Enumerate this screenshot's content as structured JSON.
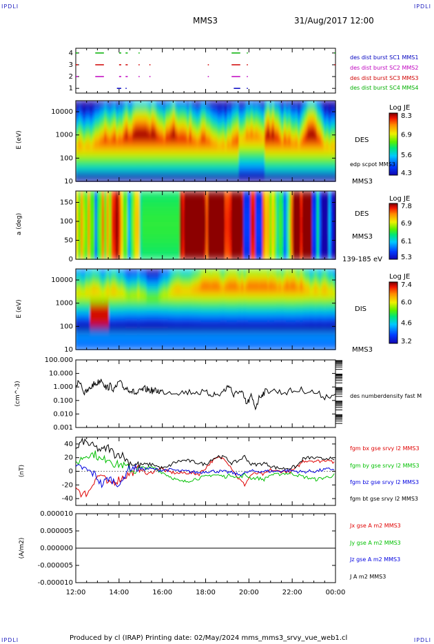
{
  "header": {
    "left_logo": "IPDLI",
    "right_logo": "IPDLI",
    "spacecraft": "MMS3",
    "date": "31/Aug/2017 12:00"
  },
  "footer": {
    "text": "Produced by cl (IRAP)   Printing date: 02/May/2024   mms_mms3_srvy_vue_web1.cl",
    "left_logo": "IPDLI",
    "right_logo": "IPDLI"
  },
  "colors": {
    "mms1": "#0000c0",
    "mms2": "#c000c0",
    "mms3": "#d00000",
    "mms4": "#00b000",
    "bx": "#e00000",
    "by": "#00c000",
    "bz": "#0000e0",
    "bt": "#000000"
  },
  "chart_data": [
    {
      "type": "scatter",
      "name": "burst-availability",
      "ylim": [
        0.6,
        4.4
      ],
      "yticks": [
        "1",
        "2",
        "3",
        "4"
      ],
      "legend": [
        "des dist burst SC1 MMS1",
        "des dist burst SC2 MMS2",
        "des dist burst SC3 MMS3",
        "des dist burst SC4 MMS4"
      ],
      "segments": [
        {
          "sc": 4,
          "hours": [
            [
              12.0,
              12.1
            ],
            [
              12.9,
              13.3
            ],
            [
              14.0,
              14.1
            ],
            [
              14.3,
              14.4
            ],
            [
              14.9,
              14.95
            ],
            [
              19.2,
              19.6
            ],
            [
              19.9,
              19.95
            ],
            [
              23.95,
              24.0
            ]
          ]
        },
        {
          "sc": 3,
          "hours": [
            [
              12.0,
              12.1
            ],
            [
              12.9,
              13.3
            ],
            [
              14.0,
              14.1
            ],
            [
              14.3,
              14.4
            ],
            [
              14.9,
              14.95
            ],
            [
              15.4,
              15.45
            ],
            [
              18.1,
              18.15
            ],
            [
              19.2,
              19.6
            ],
            [
              19.9,
              19.95
            ],
            [
              23.95,
              24.0
            ]
          ]
        },
        {
          "sc": 2,
          "hours": [
            [
              12.0,
              12.1
            ],
            [
              12.9,
              13.3
            ],
            [
              14.0,
              14.1
            ],
            [
              14.3,
              14.4
            ],
            [
              14.9,
              14.95
            ],
            [
              15.4,
              15.45
            ],
            [
              18.1,
              18.15
            ],
            [
              19.2,
              19.6
            ],
            [
              19.9,
              19.95
            ]
          ]
        },
        {
          "sc": 1,
          "hours": [
            [
              13.9,
              14.1
            ],
            [
              14.3,
              14.35
            ],
            [
              19.3,
              19.6
            ],
            [
              19.9,
              19.95
            ]
          ]
        }
      ]
    },
    {
      "type": "heatmap",
      "name": "des-energy-spectrogram",
      "ylabel": "E (eV)",
      "yscale": "log",
      "ylim": [
        10,
        30000
      ],
      "yticks": [
        "10",
        "100",
        "1000",
        "10000"
      ],
      "label": "DES",
      "spacecraft_label": "MMS3",
      "overlay_label": "edp scpot MMS3",
      "colorbar": {
        "title": "Log JE",
        "ticks": [
          "8.3",
          "6.9",
          "5.6",
          "4.3"
        ],
        "range": [
          4.3,
          8.3
        ]
      }
    },
    {
      "type": "heatmap",
      "name": "des-pitch-angle",
      "ylabel": "a (deg)",
      "ylim": [
        0,
        180
      ],
      "yticks": [
        "0",
        "50",
        "100",
        "150"
      ],
      "label": "DES",
      "spacecraft_label": "MMS3",
      "energy_range": "139-185 eV",
      "colorbar": {
        "title": "Log JE",
        "ticks": [
          "7.8",
          "6.9",
          "6.1",
          "5.3"
        ],
        "range": [
          5.3,
          7.8
        ]
      }
    },
    {
      "type": "heatmap",
      "name": "dis-energy-spectrogram",
      "ylabel": "E (eV)",
      "yscale": "log",
      "ylim": [
        10,
        30000
      ],
      "yticks": [
        "10",
        "100",
        "1000",
        "10000"
      ],
      "label": "DIS",
      "spacecraft_label": "MMS3",
      "colorbar": {
        "title": "Log JE",
        "ticks": [
          "7.4",
          "6.0",
          "4.6",
          "3.2"
        ],
        "range": [
          3.2,
          7.4
        ]
      }
    },
    {
      "type": "line",
      "name": "density",
      "ylabel": "(cm^-3)",
      "yscale": "log",
      "ylim": [
        0.001,
        100
      ],
      "yticks": [
        "100.000",
        "10.000",
        "1.000",
        "0.100",
        "0.010",
        "0.001"
      ],
      "legend": [
        "des numberdensity fast M"
      ],
      "series": [
        {
          "name": "des numberdensity fast M",
          "x": [
            12.0,
            12.2,
            12.4,
            12.6,
            12.8,
            13.0,
            13.2,
            13.4,
            13.6,
            13.8,
            14.0,
            14.2,
            14.4,
            14.6,
            14.8,
            15.0,
            15.2,
            15.4,
            15.6,
            15.8,
            16.0,
            16.5,
            17.0,
            17.5,
            18.0,
            18.3,
            18.6,
            18.9,
            19.1,
            19.3,
            19.5,
            19.7,
            19.9,
            20.1,
            20.3,
            20.5,
            20.7,
            21.0,
            21.5,
            22.0,
            22.5,
            23.0,
            23.5,
            24.0
          ],
          "y": [
            1.2,
            3.0,
            0.3,
            0.6,
            1.5,
            2.0,
            4.0,
            0.8,
            1.2,
            0.6,
            2.5,
            0.9,
            0.8,
            0.5,
            0.3,
            0.5,
            0.7,
            0.6,
            0.5,
            0.5,
            0.45,
            0.45,
            0.4,
            0.45,
            0.35,
            0.3,
            0.25,
            0.6,
            1.5,
            0.2,
            0.5,
            0.3,
            0.05,
            0.2,
            0.03,
            0.2,
            0.4,
            0.6,
            0.4,
            0.5,
            0.6,
            0.4,
            0.2,
            0.3
          ]
        }
      ]
    },
    {
      "type": "line",
      "name": "magnetic-field",
      "ylabel": "(nT)",
      "ylim": [
        -50,
        50
      ],
      "yticks": [
        "40",
        "20",
        "0",
        "-20",
        "-40"
      ],
      "legend": [
        "fgm bx gse srvy l2 MMS3",
        "fgm by gse srvy l2 MMS3",
        "fgm bz gse srvy l2 MMS3",
        "fgm bt gse srvy l2 MMS3"
      ],
      "x": [
        12.0,
        12.3,
        12.6,
        12.9,
        13.2,
        13.5,
        13.8,
        14.1,
        14.4,
        14.7,
        15.0,
        15.3,
        15.6,
        15.9,
        16.2,
        16.5,
        16.8,
        17.1,
        17.4,
        17.7,
        18.0,
        18.3,
        18.6,
        18.9,
        19.2,
        19.5,
        19.8,
        20.1,
        20.4,
        20.7,
        21.0,
        21.3,
        21.6,
        21.9,
        22.2,
        22.5,
        22.8,
        23.1,
        23.4,
        23.7,
        24.0
      ],
      "series": [
        {
          "name": "bx",
          "values": [
            -20,
            -35,
            -30,
            -10,
            -5,
            -20,
            -15,
            -10,
            -5,
            0,
            5,
            -5,
            0,
            5,
            0,
            -2,
            -3,
            -2,
            -3,
            -4,
            5,
            15,
            20,
            18,
            5,
            -10,
            -20,
            -5,
            -3,
            -5,
            2,
            0,
            0,
            -1,
            5,
            15,
            16,
            15,
            15,
            18,
            10
          ]
        },
        {
          "name": "by",
          "values": [
            10,
            20,
            25,
            25,
            15,
            20,
            10,
            10,
            5,
            0,
            5,
            5,
            5,
            0,
            -5,
            -10,
            -15,
            -15,
            -12,
            -10,
            -8,
            -5,
            -6,
            -8,
            -5,
            -10,
            -5,
            -10,
            -10,
            -12,
            -5,
            -5,
            -3,
            -3,
            -5,
            -8,
            -10,
            -12,
            -10,
            -8,
            -5
          ]
        },
        {
          "name": "bz",
          "values": [
            5,
            5,
            0,
            -5,
            -20,
            -10,
            -15,
            -20,
            5,
            5,
            3,
            4,
            3,
            2,
            2,
            2,
            0,
            0,
            -1,
            -2,
            0,
            0,
            0,
            -1,
            -2,
            -5,
            -3,
            0,
            0,
            0,
            0,
            0,
            1,
            1,
            0,
            -1,
            0,
            0,
            2,
            3,
            3
          ]
        },
        {
          "name": "bt",
          "values": [
            30,
            45,
            40,
            35,
            30,
            35,
            25,
            25,
            15,
            10,
            10,
            10,
            10,
            5,
            5,
            12,
            15,
            16,
            14,
            12,
            10,
            18,
            22,
            20,
            12,
            15,
            22,
            10,
            10,
            12,
            8,
            5,
            4,
            5,
            7,
            18,
            20,
            19,
            18,
            20,
            13
          ]
        }
      ]
    },
    {
      "type": "line",
      "name": "current-density",
      "ylabel": "(A/m2)",
      "ylim": [
        -0.0001,
        0.0001
      ],
      "yticks": [
        "0.000010",
        "0.000005",
        "0.000000",
        "-0.000005",
        "-0.000010"
      ],
      "legend": [
        "Jx gse A m2 MMS3",
        "Jy gse A m2 MMS3",
        "Jz gse A m2 MMS3",
        "J A m2 MMS3"
      ],
      "series": [
        {
          "name": "J",
          "values": [
            0,
            0
          ]
        }
      ]
    }
  ],
  "time_axis": {
    "range": [
      12,
      24
    ],
    "labels": [
      "12:00",
      "14:00",
      "16:00",
      "18:00",
      "20:00",
      "22:00",
      "00:00"
    ]
  }
}
